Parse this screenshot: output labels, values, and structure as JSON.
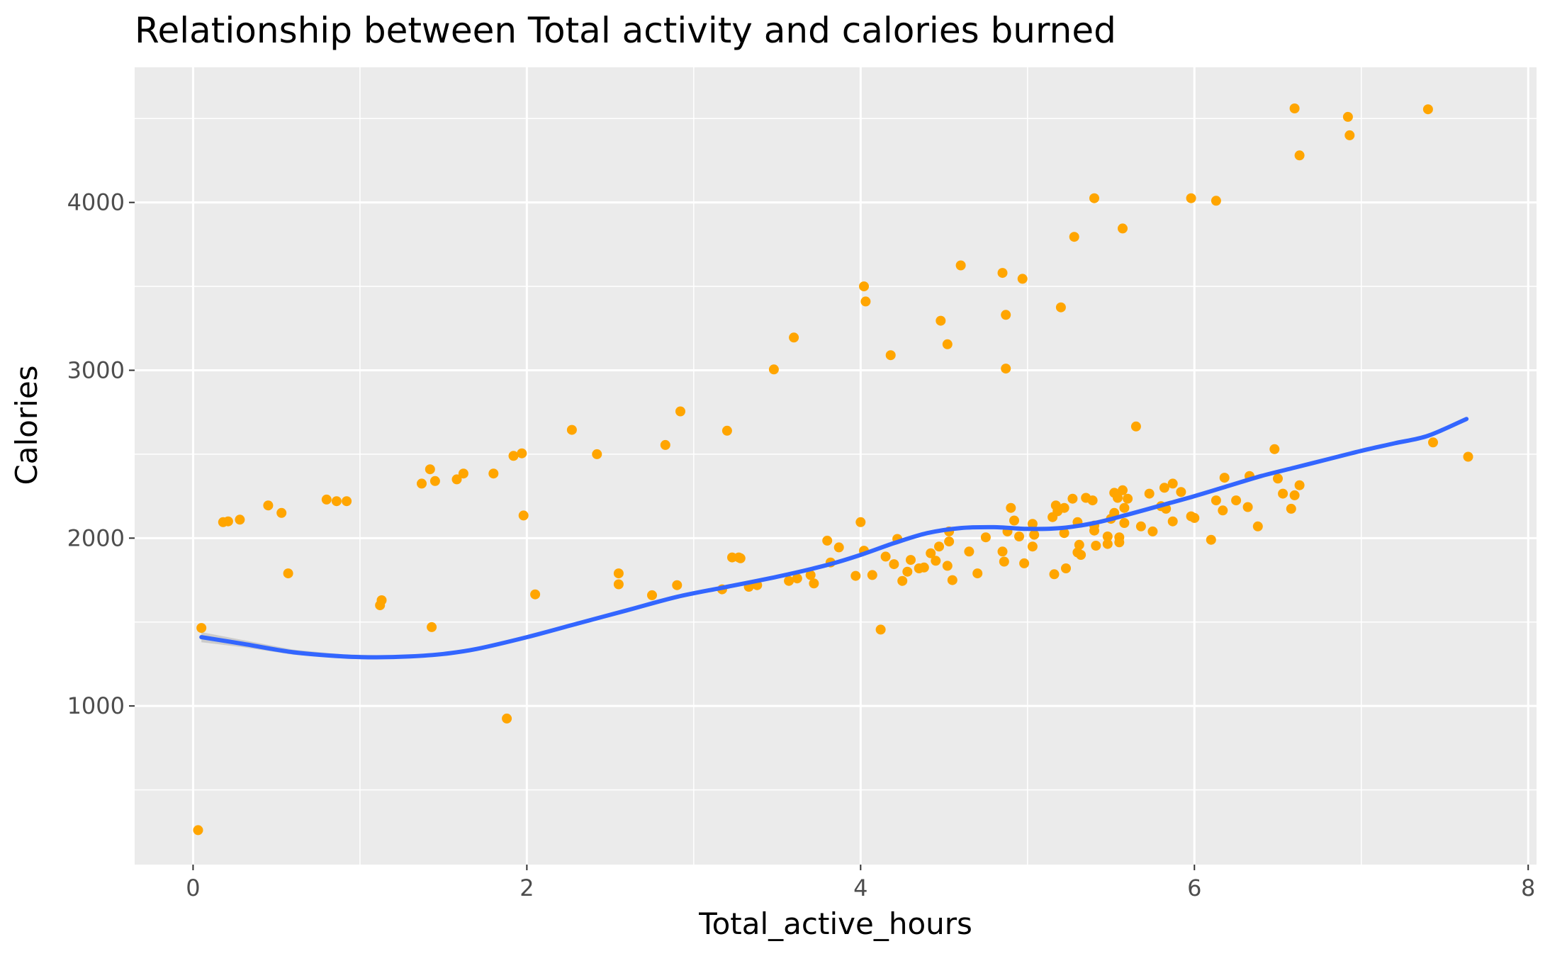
{
  "chart_data": {
    "type": "scatter",
    "title": "Relationship between Total activity and calories burned",
    "xlabel": "Total_active_hours",
    "ylabel": "Calories",
    "xlim": [
      -0.35,
      8.05
    ],
    "ylim": [
      55,
      4805
    ],
    "x_ticks": [
      0,
      2,
      4,
      6,
      8
    ],
    "y_ticks": [
      1000,
      2000,
      3000,
      4000
    ],
    "x_tick_labels": [
      "0",
      "2",
      "4",
      "6",
      "8"
    ],
    "y_tick_labels": [
      "1000",
      "2000",
      "3000",
      "4000"
    ],
    "grid": true,
    "colors": {
      "panel": "#ebebeb",
      "grid": "#ffffff",
      "points": "#ffa500",
      "smooth": "#3366ff",
      "ribbon": "#bdbdbd"
    },
    "points": [
      [
        0.03,
        260
      ],
      [
        0.05,
        1465
      ],
      [
        0.18,
        2095
      ],
      [
        0.21,
        2100
      ],
      [
        0.28,
        2110
      ],
      [
        0.45,
        2195
      ],
      [
        0.53,
        2150
      ],
      [
        0.57,
        1790
      ],
      [
        0.8,
        2230
      ],
      [
        0.86,
        2220
      ],
      [
        0.92,
        2220
      ],
      [
        1.12,
        1600
      ],
      [
        1.13,
        1630
      ],
      [
        1.37,
        2325
      ],
      [
        1.42,
        2410
      ],
      [
        1.43,
        1470
      ],
      [
        1.45,
        2340
      ],
      [
        1.58,
        2350
      ],
      [
        1.62,
        2385
      ],
      [
        1.8,
        2385
      ],
      [
        1.88,
        925
      ],
      [
        1.92,
        2490
      ],
      [
        1.97,
        2505
      ],
      [
        1.98,
        2135
      ],
      [
        2.05,
        1665
      ],
      [
        2.27,
        2645
      ],
      [
        2.42,
        2500
      ],
      [
        2.55,
        1790
      ],
      [
        2.55,
        1725
      ],
      [
        2.75,
        1660
      ],
      [
        2.83,
        2555
      ],
      [
        2.9,
        1720
      ],
      [
        2.92,
        2755
      ],
      [
        3.17,
        1695
      ],
      [
        3.2,
        2640
      ],
      [
        3.23,
        1885
      ],
      [
        3.27,
        1885
      ],
      [
        3.28,
        1880
      ],
      [
        3.33,
        1710
      ],
      [
        3.38,
        1720
      ],
      [
        3.48,
        3005
      ],
      [
        3.57,
        1745
      ],
      [
        3.6,
        3195
      ],
      [
        3.62,
        1760
      ],
      [
        3.7,
        1780
      ],
      [
        3.72,
        1730
      ],
      [
        3.8,
        1985
      ],
      [
        3.82,
        1855
      ],
      [
        3.87,
        1945
      ],
      [
        3.97,
        1775
      ],
      [
        4.0,
        2095
      ],
      [
        4.02,
        1925
      ],
      [
        4.02,
        3500
      ],
      [
        4.03,
        3410
      ],
      [
        4.07,
        1780
      ],
      [
        4.12,
        1455
      ],
      [
        4.15,
        1890
      ],
      [
        4.18,
        3090
      ],
      [
        4.2,
        1845
      ],
      [
        4.22,
        1995
      ],
      [
        4.25,
        1745
      ],
      [
        4.28,
        1800
      ],
      [
        4.3,
        1870
      ],
      [
        4.35,
        1820
      ],
      [
        4.38,
        1825
      ],
      [
        4.42,
        1910
      ],
      [
        4.45,
        1865
      ],
      [
        4.47,
        1950
      ],
      [
        4.48,
        3295
      ],
      [
        4.52,
        3155
      ],
      [
        4.52,
        1835
      ],
      [
        4.53,
        2040
      ],
      [
        4.53,
        1980
      ],
      [
        4.55,
        1750
      ],
      [
        4.6,
        3625
      ],
      [
        4.65,
        1920
      ],
      [
        4.7,
        1790
      ],
      [
        4.75,
        2005
      ],
      [
        4.85,
        3580
      ],
      [
        4.85,
        1920
      ],
      [
        4.86,
        1860
      ],
      [
        4.87,
        3330
      ],
      [
        4.87,
        3010
      ],
      [
        4.88,
        2040
      ],
      [
        4.9,
        2180
      ],
      [
        4.92,
        2105
      ],
      [
        4.95,
        2010
      ],
      [
        4.97,
        3545
      ],
      [
        4.98,
        1850
      ],
      [
        5.03,
        2085
      ],
      [
        5.03,
        1950
      ],
      [
        5.04,
        2020
      ],
      [
        5.15,
        2125
      ],
      [
        5.16,
        1785
      ],
      [
        5.17,
        2195
      ],
      [
        5.18,
        2160
      ],
      [
        5.2,
        3375
      ],
      [
        5.22,
        2180
      ],
      [
        5.22,
        2030
      ],
      [
        5.23,
        1820
      ],
      [
        5.27,
        2235
      ],
      [
        5.28,
        3795
      ],
      [
        5.3,
        1915
      ],
      [
        5.3,
        2095
      ],
      [
        5.31,
        1960
      ],
      [
        5.32,
        1900
      ],
      [
        5.35,
        2240
      ],
      [
        5.39,
        2225
      ],
      [
        5.4,
        4025
      ],
      [
        5.4,
        2045
      ],
      [
        5.4,
        2075
      ],
      [
        5.41,
        1955
      ],
      [
        5.48,
        1965
      ],
      [
        5.48,
        2010
      ],
      [
        5.5,
        2115
      ],
      [
        5.52,
        2270
      ],
      [
        5.52,
        2150
      ],
      [
        5.54,
        2240
      ],
      [
        5.55,
        1975
      ],
      [
        5.55,
        2005
      ],
      [
        5.57,
        2285
      ],
      [
        5.57,
        3845
      ],
      [
        5.58,
        2180
      ],
      [
        5.58,
        2090
      ],
      [
        5.6,
        2235
      ],
      [
        5.65,
        2665
      ],
      [
        5.68,
        2070
      ],
      [
        5.73,
        2265
      ],
      [
        5.75,
        2040
      ],
      [
        5.8,
        2190
      ],
      [
        5.82,
        2300
      ],
      [
        5.83,
        2175
      ],
      [
        5.87,
        2100
      ],
      [
        5.87,
        2325
      ],
      [
        5.92,
        2275
      ],
      [
        5.98,
        4025
      ],
      [
        5.98,
        2130
      ],
      [
        6.0,
        2120
      ],
      [
        6.1,
        1990
      ],
      [
        6.13,
        4010
      ],
      [
        6.13,
        2225
      ],
      [
        6.17,
        2165
      ],
      [
        6.18,
        2360
      ],
      [
        6.25,
        2225
      ],
      [
        6.32,
        2185
      ],
      [
        6.33,
        2370
      ],
      [
        6.38,
        2070
      ],
      [
        6.48,
        2530
      ],
      [
        6.5,
        2355
      ],
      [
        6.53,
        2265
      ],
      [
        6.58,
        2175
      ],
      [
        6.6,
        4560
      ],
      [
        6.6,
        2255
      ],
      [
        6.63,
        4280
      ],
      [
        6.63,
        2315
      ],
      [
        6.92,
        4510
      ],
      [
        6.93,
        4400
      ],
      [
        7.4,
        4555
      ],
      [
        7.43,
        2570
      ],
      [
        7.64,
        2485
      ]
    ],
    "smooth_line": [
      [
        0.05,
        1410
      ],
      [
        0.3,
        1370
      ],
      [
        0.6,
        1320
      ],
      [
        0.9,
        1295
      ],
      [
        1.1,
        1290
      ],
      [
        1.3,
        1295
      ],
      [
        1.5,
        1310
      ],
      [
        1.7,
        1340
      ],
      [
        2.0,
        1410
      ],
      [
        2.3,
        1490
      ],
      [
        2.6,
        1570
      ],
      [
        2.9,
        1650
      ],
      [
        3.2,
        1710
      ],
      [
        3.5,
        1770
      ],
      [
        3.8,
        1840
      ],
      [
        4.0,
        1900
      ],
      [
        4.2,
        1970
      ],
      [
        4.4,
        2030
      ],
      [
        4.6,
        2060
      ],
      [
        4.8,
        2065
      ],
      [
        5.0,
        2055
      ],
      [
        5.2,
        2060
      ],
      [
        5.4,
        2090
      ],
      [
        5.6,
        2140
      ],
      [
        5.8,
        2195
      ],
      [
        6.0,
        2250
      ],
      [
        6.2,
        2310
      ],
      [
        6.4,
        2370
      ],
      [
        6.6,
        2420
      ],
      [
        6.8,
        2470
      ],
      [
        7.0,
        2520
      ],
      [
        7.2,
        2565
      ],
      [
        7.4,
        2610
      ],
      [
        7.63,
        2710
      ]
    ],
    "ribbon": [
      [
        0.05,
        1380,
        1440
      ],
      [
        0.3,
        1350,
        1392
      ],
      [
        0.6,
        1305,
        1336
      ],
      [
        0.9,
        1283,
        1307
      ],
      [
        1.2,
        1281,
        1301
      ]
    ]
  }
}
